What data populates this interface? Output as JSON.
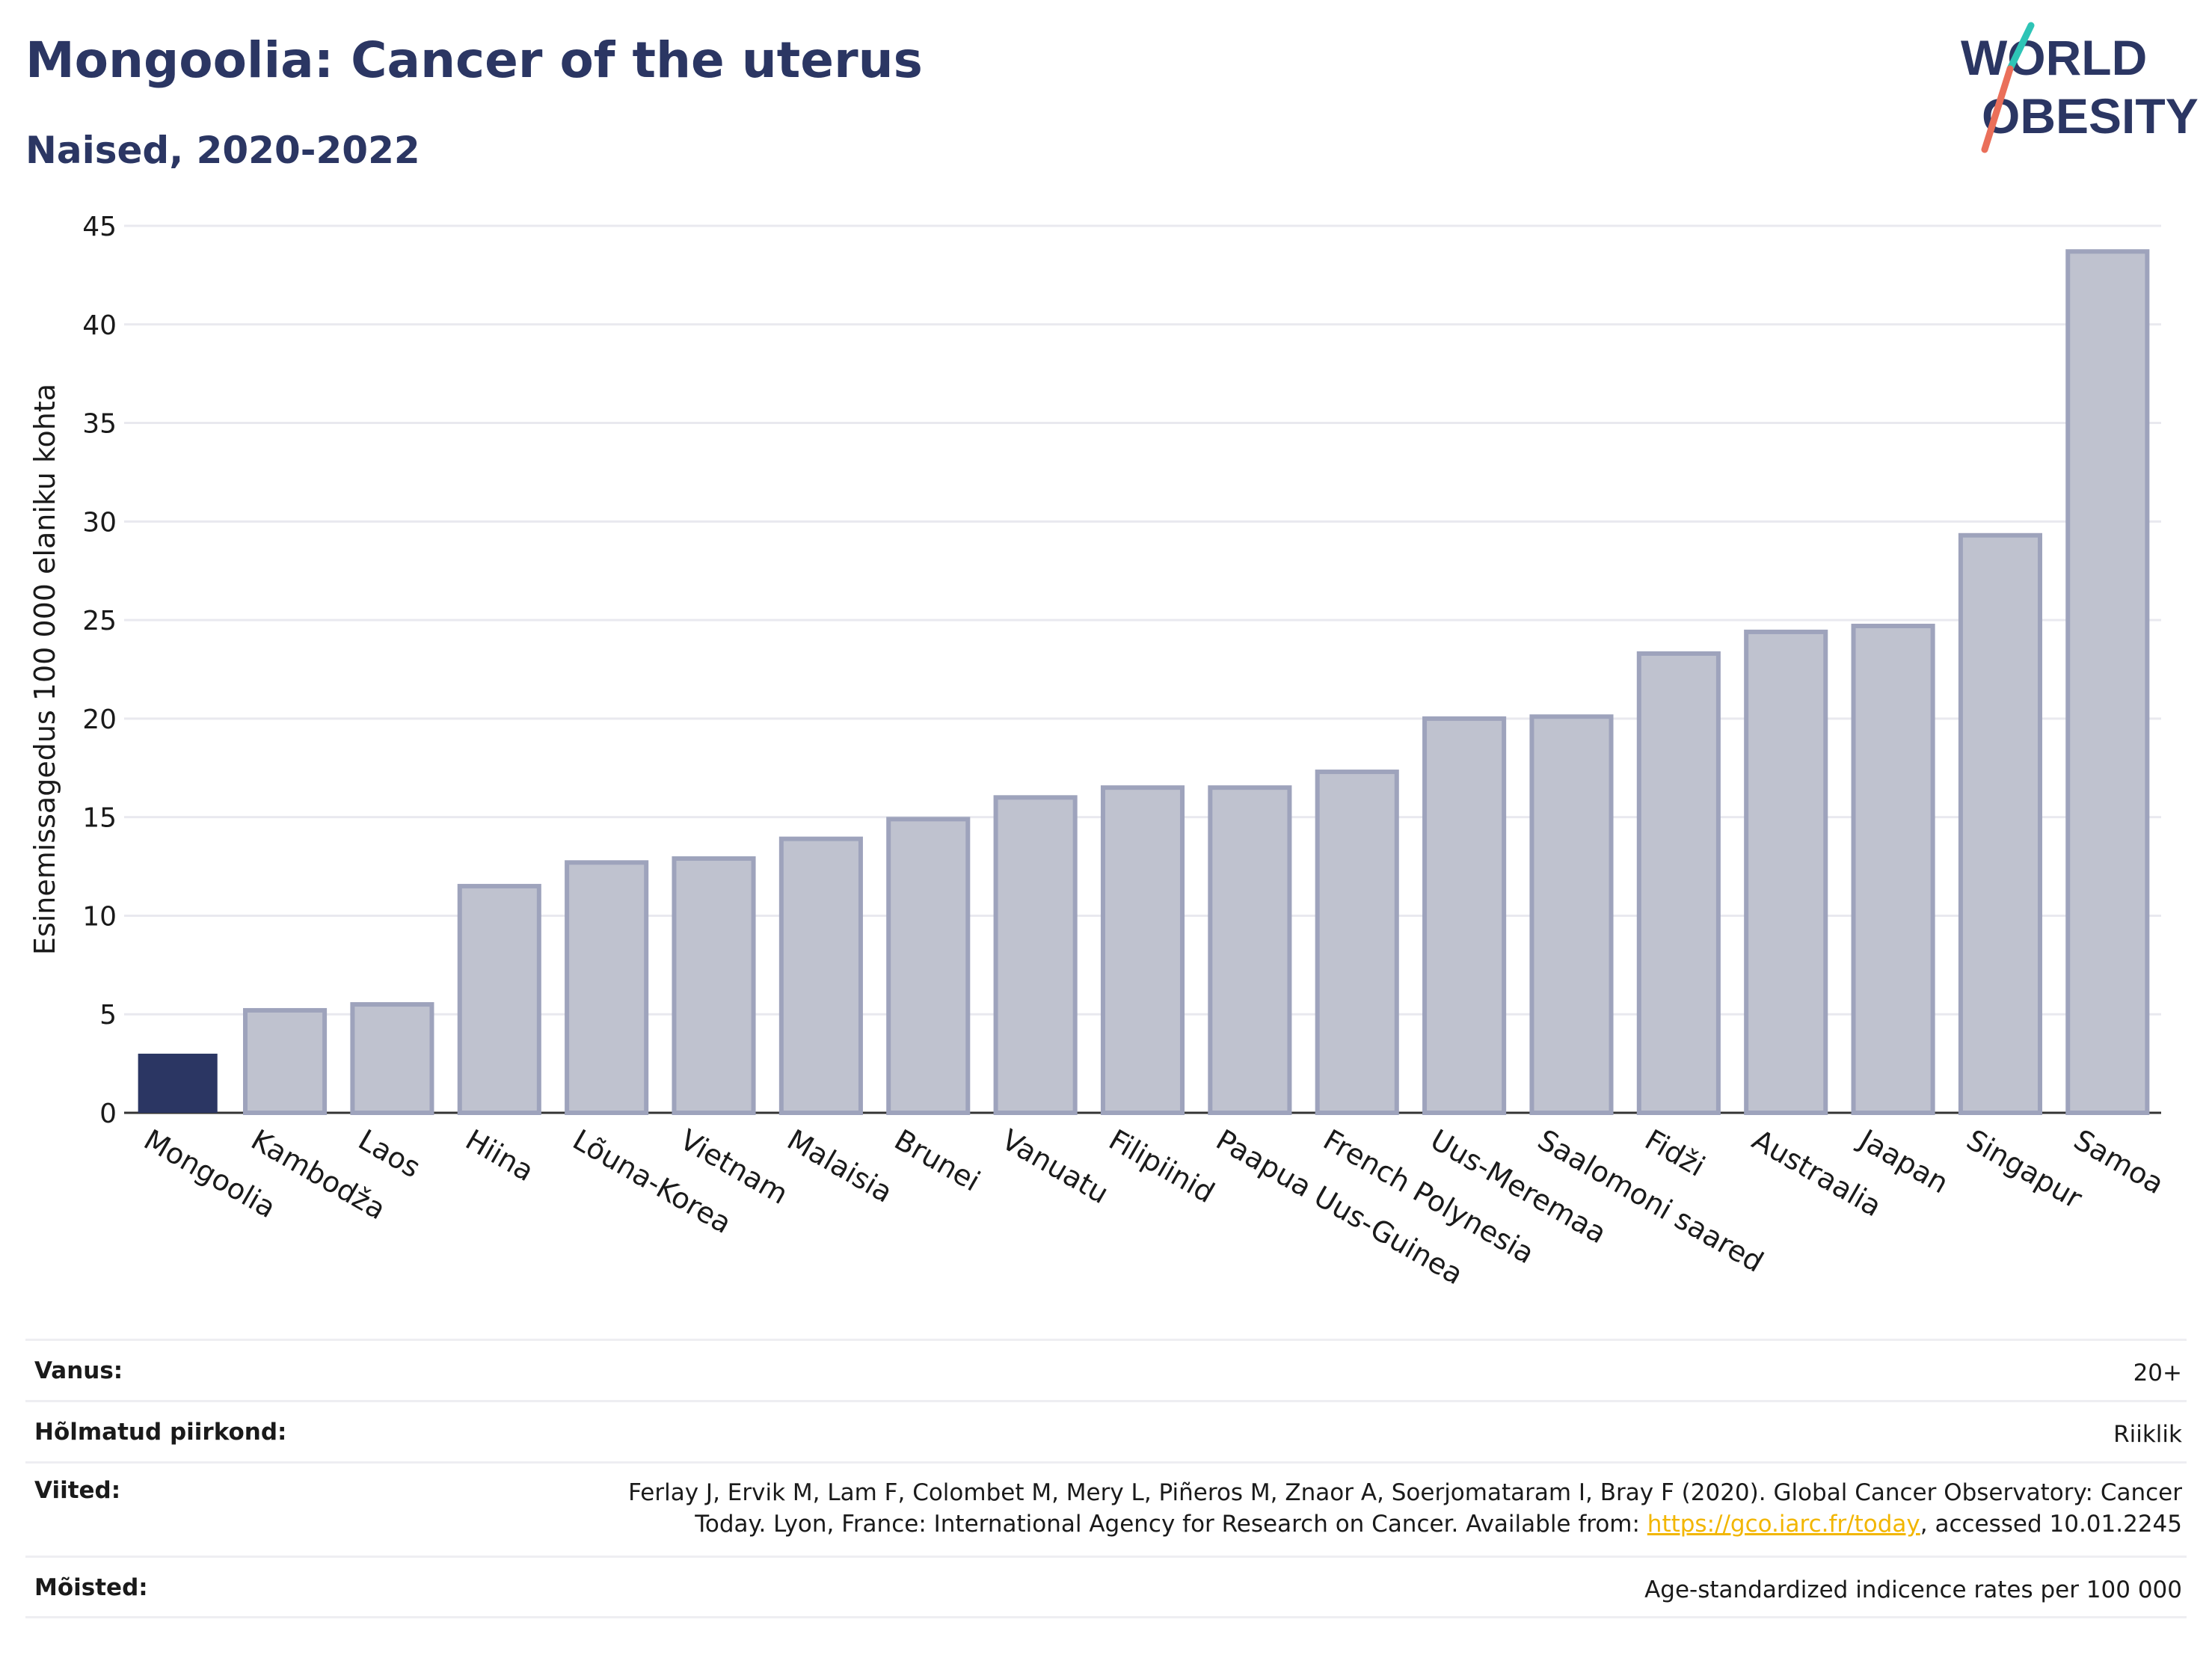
{
  "title": "Mongoolia: Cancer of the uterus",
  "subtitle": "Naised, 2020-2022",
  "logo": {
    "line1": "WORLD",
    "line2": "OBESITY",
    "colors": {
      "text": "#2b3663",
      "teal": "#2ec4b6",
      "coral": "#ea6f5a"
    }
  },
  "colors": {
    "highlight": "#2b3663",
    "bar_fill": "#bfc2cf",
    "bar_stroke": "#9ea3bc",
    "grid": "#e9e9ef",
    "text": "#1a1a1a",
    "link": "#f2b600"
  },
  "chart_data": {
    "type": "bar",
    "ylabel": "Esinemissagedus 100 000 elaniku kohta",
    "xlabel": "",
    "ylim": [
      0,
      45
    ],
    "yticks": [
      0,
      5,
      10,
      15,
      20,
      25,
      30,
      35,
      40,
      45
    ],
    "grid": true,
    "highlight_category": "Mongoolia",
    "categories": [
      "Mongoolia",
      "Kambodža",
      "Laos",
      "Hiina",
      "Lõuna-Korea",
      "Vietnam",
      "Malaisia",
      "Brunei",
      "Vanuatu",
      "Filipiinid",
      "Paapua Uus-Guinea",
      "French Polynesia",
      "Uus-Meremaa",
      "Saalomoni saared",
      "Fidži",
      "Austraalia",
      "Jaapan",
      "Singapur",
      "Samoa"
    ],
    "values": [
      3.0,
      5.2,
      5.5,
      11.5,
      12.7,
      12.9,
      13.9,
      14.9,
      16.0,
      16.5,
      16.5,
      17.3,
      20.0,
      20.1,
      23.3,
      24.4,
      24.7,
      29.3,
      43.7
    ]
  },
  "meta": [
    {
      "key": "Vanus:",
      "value": "20+"
    },
    {
      "key": "Hõlmatud piirkond:",
      "value": "Riiklik"
    },
    {
      "key": "Viited:",
      "value_line1": "Ferlay J, Ervik M, Lam F, Colombet M, Mery L, Piñeros M, Znaor A, Soerjomataram I, Bray F (2020). Global Cancer Observatory: Cancer",
      "value_line2_pre": "Today. Lyon, France: International Agency for Research on Cancer. Available from: ",
      "link": "https://gco.iarc.fr/today",
      "value_line2_post": ", accessed 10.01.2245"
    },
    {
      "key": "Mõisted:",
      "value": "Age-standardized indicence rates per 100 000"
    }
  ]
}
